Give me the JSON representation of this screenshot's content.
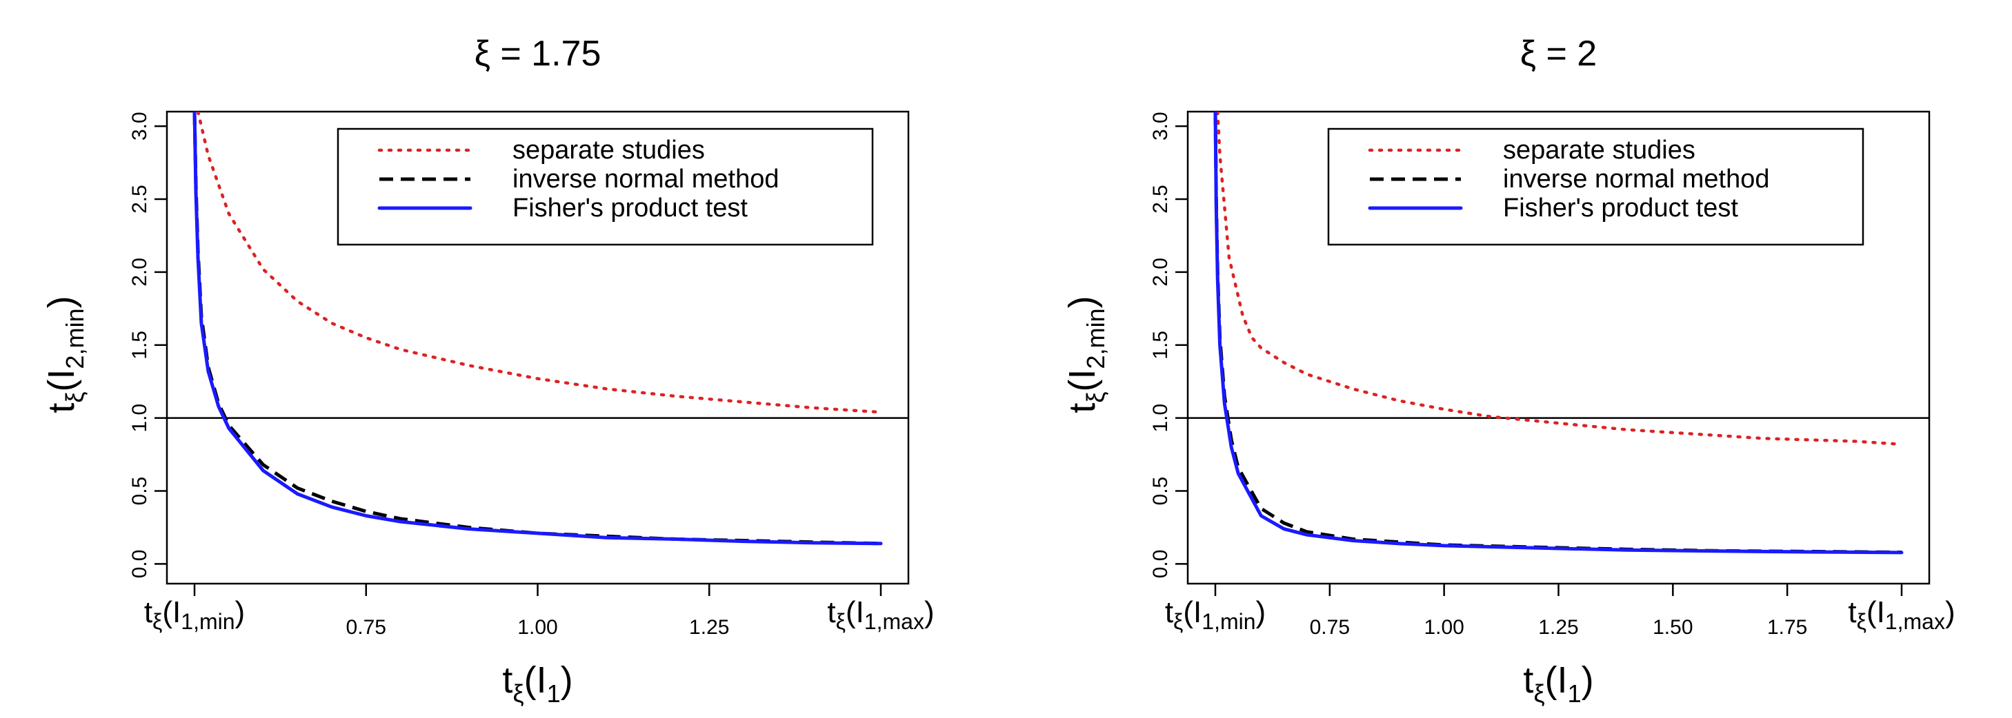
{
  "chart_data": [
    {
      "type": "line",
      "title": "ξ = 1.75",
      "xlabel": "tξ(I1)",
      "ylabel": "tξ(I2,min)",
      "xlim": [
        0.5,
        1.5
      ],
      "ylim": [
        -0.05,
        3.1
      ],
      "xticks": [
        0.75,
        1.0,
        1.25
      ],
      "xtick_labels": [
        "0.75",
        "1.00",
        "1.25"
      ],
      "x_edge_labels": {
        "min": {
          "base": "t",
          "sub": "ξ",
          "arg": "I",
          "argsub": "1,min",
          "x": 0.5
        },
        "max": {
          "base": "t",
          "sub": "ξ",
          "arg": "I",
          "argsub": "1,max",
          "x": 1.5
        }
      },
      "yticks": [
        0.0,
        0.5,
        1.0,
        1.5,
        2.0,
        2.5,
        3.0
      ],
      "ytick_labels": [
        "0.0",
        "0.5",
        "1.0",
        "1.5",
        "2.0",
        "2.5",
        "3.0"
      ],
      "hline": 1.0,
      "legend": [
        "separate studies",
        "inverse normal method",
        "Fisher's product test"
      ],
      "series": [
        {
          "name": "separate studies",
          "style": "dotted",
          "color": "#dd2222",
          "x": [
            0.505,
            0.52,
            0.55,
            0.6,
            0.65,
            0.7,
            0.75,
            0.8,
            0.9,
            1.0,
            1.1,
            1.2,
            1.3,
            1.4,
            1.5
          ],
          "y": [
            3.1,
            2.8,
            2.4,
            2.02,
            1.8,
            1.65,
            1.55,
            1.47,
            1.36,
            1.27,
            1.2,
            1.15,
            1.11,
            1.07,
            1.04
          ]
        },
        {
          "name": "inverse normal method",
          "style": "dashed",
          "color": "#000000",
          "x": [
            0.5,
            0.502,
            0.505,
            0.51,
            0.52,
            0.535,
            0.55,
            0.6,
            0.65,
            0.7,
            0.75,
            0.8,
            0.9,
            1.0,
            1.1,
            1.2,
            1.3,
            1.4,
            1.5
          ],
          "y": [
            3.1,
            2.6,
            2.15,
            1.7,
            1.35,
            1.1,
            0.95,
            0.68,
            0.52,
            0.43,
            0.36,
            0.31,
            0.25,
            0.21,
            0.19,
            0.17,
            0.16,
            0.15,
            0.14
          ]
        },
        {
          "name": "Fisher's product test",
          "style": "solid",
          "color": "#1a1aff",
          "x": [
            0.5,
            0.502,
            0.505,
            0.51,
            0.52,
            0.535,
            0.55,
            0.6,
            0.65,
            0.7,
            0.75,
            0.8,
            0.9,
            1.0,
            1.1,
            1.2,
            1.3,
            1.4,
            1.5
          ],
          "y": [
            3.1,
            2.55,
            2.1,
            1.65,
            1.32,
            1.08,
            0.93,
            0.64,
            0.48,
            0.39,
            0.33,
            0.29,
            0.24,
            0.21,
            0.18,
            0.17,
            0.155,
            0.145,
            0.14
          ]
        }
      ]
    },
    {
      "type": "line",
      "title": "ξ = 2",
      "xlabel": "tξ(I1)",
      "ylabel": "tξ(I2,min)",
      "xlim": [
        0.5,
        2.0
      ],
      "ylim": [
        -0.05,
        3.1
      ],
      "xticks": [
        0.75,
        1.0,
        1.25,
        1.5,
        1.75
      ],
      "xtick_labels": [
        "0.75",
        "1.00",
        "1.25",
        "1.50",
        "1.75"
      ],
      "x_edge_labels": {
        "min": {
          "base": "t",
          "sub": "ξ",
          "arg": "I",
          "argsub": "1,min",
          "x": 0.5
        },
        "max": {
          "base": "t",
          "sub": "ξ",
          "arg": "I",
          "argsub": "1,max",
          "x": 2.0
        }
      },
      "yticks": [
        0.0,
        0.5,
        1.0,
        1.5,
        2.0,
        2.5,
        3.0
      ],
      "ytick_labels": [
        "0.0",
        "0.5",
        "1.0",
        "1.5",
        "2.0",
        "2.5",
        "3.0"
      ],
      "hline": 1.0,
      "legend": [
        "separate studies",
        "inverse normal method",
        "Fisher's product test"
      ],
      "series": [
        {
          "name": "separate studies",
          "style": "dotted",
          "color": "#dd2222",
          "x": [
            0.505,
            0.51,
            0.53,
            0.56,
            0.58,
            0.6,
            0.65,
            0.7,
            0.8,
            0.9,
            1.0,
            1.1,
            1.2,
            1.3,
            1.4,
            1.5,
            1.6,
            1.7,
            1.8,
            1.9,
            2.0
          ],
          "y": [
            3.1,
            2.8,
            2.1,
            1.7,
            1.55,
            1.48,
            1.38,
            1.3,
            1.2,
            1.12,
            1.06,
            1.01,
            0.98,
            0.95,
            0.92,
            0.9,
            0.88,
            0.86,
            0.85,
            0.84,
            0.82
          ]
        },
        {
          "name": "inverse normal method",
          "style": "dashed",
          "color": "#000000",
          "x": [
            0.5,
            0.502,
            0.505,
            0.51,
            0.52,
            0.535,
            0.55,
            0.6,
            0.65,
            0.7,
            0.8,
            0.9,
            1.0,
            1.2,
            1.4,
            1.6,
            1.8,
            2.0
          ],
          "y": [
            3.1,
            2.5,
            2.0,
            1.55,
            1.15,
            0.85,
            0.66,
            0.38,
            0.28,
            0.22,
            0.17,
            0.15,
            0.13,
            0.115,
            0.1,
            0.09,
            0.085,
            0.08
          ]
        },
        {
          "name": "Fisher's product test",
          "style": "solid",
          "color": "#1a1aff",
          "x": [
            0.5,
            0.502,
            0.505,
            0.51,
            0.52,
            0.535,
            0.55,
            0.6,
            0.65,
            0.7,
            0.8,
            0.9,
            1.0,
            1.2,
            1.4,
            1.6,
            1.8,
            2.0
          ],
          "y": [
            3.1,
            2.45,
            1.95,
            1.5,
            1.1,
            0.8,
            0.62,
            0.33,
            0.24,
            0.2,
            0.16,
            0.14,
            0.125,
            0.11,
            0.095,
            0.088,
            0.082,
            0.078
          ]
        }
      ]
    }
  ]
}
